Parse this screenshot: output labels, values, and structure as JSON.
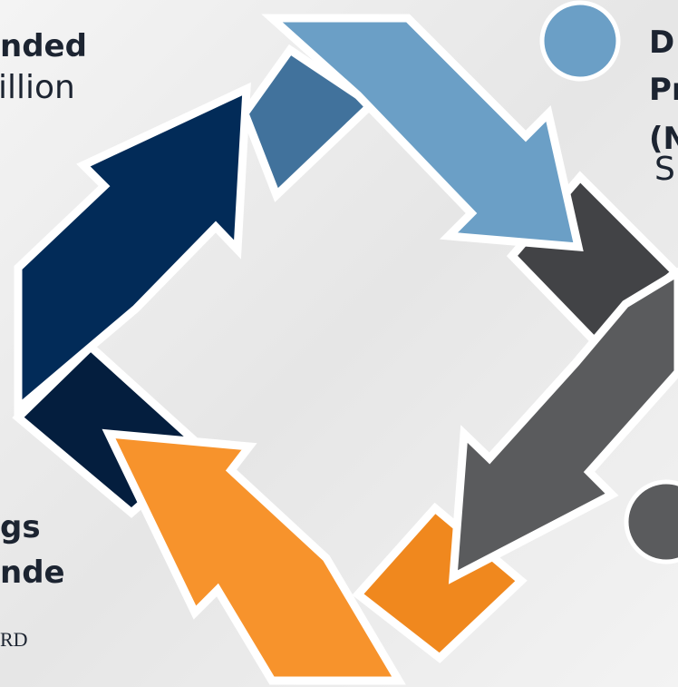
{
  "left_top": {
    "line1": "nded",
    "line2": "illion"
  },
  "right_top": {
    "line1": "D",
    "line2": "Pr",
    "line3": "(N",
    "line4": "S"
  },
  "left_bottom": {
    "line1": "gs",
    "line2": "nde",
    "line3": "RD"
  }
}
